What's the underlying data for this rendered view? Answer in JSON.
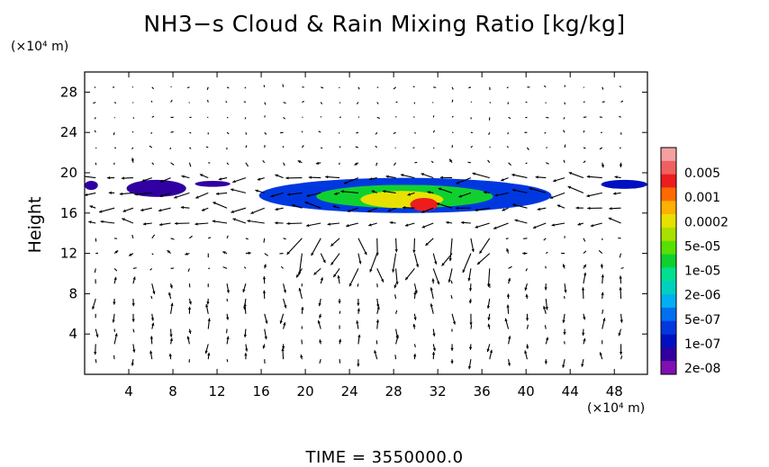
{
  "chart_data": {
    "type": "heatmap",
    "title": "NH3−s Cloud & Rain Mixing Ratio [kg/kg]",
    "ylabel": "Height",
    "y_unit": "(×10⁴ m)",
    "x_unit": "(×10⁴ m)",
    "time_label": "TIME  =  3550000.0",
    "xlim": [
      0,
      51
    ],
    "ylim": [
      0,
      30
    ],
    "x_ticks": [
      4,
      8,
      12,
      16,
      20,
      24,
      28,
      32,
      36,
      40,
      44,
      48
    ],
    "y_ticks": [
      4,
      8,
      12,
      16,
      20,
      24,
      28
    ],
    "colorbar_labels": [
      "0.005",
      "0.001",
      "0.0002",
      "5e-05",
      "1e-05",
      "2e-06",
      "5e-07",
      "1e-07",
      "2e-08"
    ],
    "colorbar_colors": [
      "#f4a0a0",
      "#f06060",
      "#ee1d1d",
      "#ff6a00",
      "#ffb000",
      "#e8e000",
      "#a8e000",
      "#58e000",
      "#10d030",
      "#00e090",
      "#00d0c0",
      "#00b0f0",
      "#0070f0",
      "#0038e0",
      "#0010c0",
      "#3000a0",
      "#8010b0"
    ],
    "cloud_bands": [
      {
        "x": [
          0,
          1.2
        ],
        "y": [
          18.3,
          19.2
        ],
        "level": 1
      },
      {
        "x": [
          3.8,
          9.2
        ],
        "y": [
          17.6,
          19.3
        ],
        "level": 1
      },
      {
        "x": [
          10,
          13.2
        ],
        "y": [
          18.6,
          19.2
        ],
        "level": 1
      },
      {
        "x": [
          15.8,
          42.3
        ],
        "y": [
          16.0,
          19.5
        ],
        "level": 3
      },
      {
        "x": [
          21,
          37
        ],
        "y": [
          16.5,
          18.8
        ],
        "level": 8
      },
      {
        "x": [
          25,
          32.5
        ],
        "y": [
          16.5,
          18.2
        ],
        "level": 11
      },
      {
        "x": [
          29.5,
          32
        ],
        "y": [
          16.2,
          17.5
        ],
        "level": 14
      },
      {
        "x": [
          46.8,
          51
        ],
        "y": [
          18.4,
          19.3
        ],
        "level": 2
      }
    ]
  }
}
